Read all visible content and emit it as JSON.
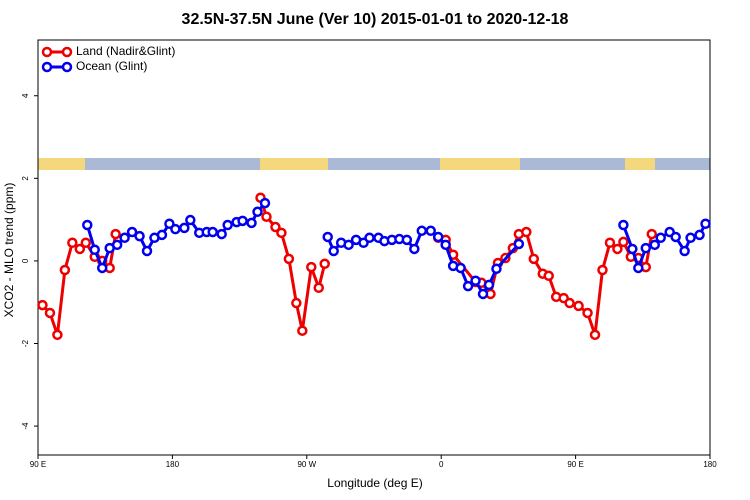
{
  "chart_data": {
    "type": "line",
    "title": "32.5N-37.5N June (Ver 10)   2015-01-01 to 2020-12-18",
    "x_label": "Longitude (deg E)",
    "y_label": "XCO2 - MLO trend (ppm)",
    "xlim": [
      90,
      540
    ],
    "xticks": [
      {
        "value": 90,
        "label": "90 E"
      },
      180,
      {
        "value": 270,
        "label": "90 W"
      },
      {
        "value": 360,
        "label": "0"
      },
      {
        "value": 450,
        "label": "90 E"
      },
      {
        "value": 540,
        "label": "180"
      }
    ],
    "ylim": [
      -4.7,
      5.35
    ],
    "yticks": [
      -4,
      -2,
      0,
      2,
      4
    ],
    "legend": "top-left",
    "series": [
      {
        "name": "Land (Nadir&Glint)",
        "color": "#ee0000",
        "x": [
          93,
          98,
          103,
          108,
          113,
          118,
          122,
          128,
          133,
          138,
          142,
          null,
          239,
          243,
          249,
          253,
          258,
          263,
          267,
          273,
          278,
          282,
          null,
          358,
          363,
          368,
          383,
          387,
          393,
          398,
          403,
          408,
          412,
          417,
          422,
          428,
          432,
          437,
          442,
          446,
          452,
          458,
          463,
          468,
          473,
          478,
          482,
          487,
          492,
          497,
          501
        ],
        "values": [
          -1.07,
          -1.26,
          -1.79,
          -0.22,
          0.44,
          0.29,
          0.44,
          0.1,
          0,
          -0.17,
          0.65,
          null,
          1.53,
          1.07,
          0.82,
          0.68,
          0.05,
          -1.02,
          -1.69,
          -0.15,
          -0.65,
          -0.07,
          null,
          0.56,
          0.51,
          0.15,
          -0.51,
          -0.53,
          -0.8,
          -0.05,
          0.07,
          0.31,
          0.65,
          0.7,
          0.05,
          -0.31,
          -0.36,
          -0.87,
          -0.9,
          -1.02,
          -1.09,
          -1.26,
          -1.79,
          -0.22,
          0.44,
          0.29,
          0.46,
          0.1,
          0.07,
          -0.15,
          0.65
        ]
      },
      {
        "name": "Ocean (Glint)",
        "color": "#0000ee",
        "x": [
          123,
          128,
          133,
          138,
          143,
          148,
          153,
          158,
          163,
          168,
          173,
          178,
          182,
          188,
          192,
          198,
          203,
          207,
          213,
          217,
          223,
          227,
          233,
          237,
          242,
          null,
          284,
          288,
          293,
          298,
          303,
          308,
          312,
          318,
          322,
          327,
          332,
          337,
          342,
          347,
          353,
          358,
          363,
          368,
          373,
          378,
          383,
          388,
          392,
          397,
          412,
          null,
          482,
          488,
          492,
          497,
          503,
          507,
          513,
          517,
          523,
          527,
          533,
          537
        ],
        "values": [
          0.87,
          0.27,
          -0.17,
          0.31,
          0.39,
          0.56,
          0.7,
          0.6,
          0.24,
          0.56,
          0.63,
          0.9,
          0.77,
          0.8,
          0.99,
          0.68,
          0.7,
          0.7,
          0.65,
          0.87,
          0.94,
          0.97,
          0.92,
          1.19,
          1.4,
          null,
          0.58,
          0.24,
          0.44,
          0.39,
          0.51,
          0.44,
          0.56,
          0.56,
          0.48,
          0.51,
          0.53,
          0.51,
          0.29,
          0.73,
          0.73,
          0.58,
          0.39,
          -0.12,
          -0.17,
          -0.61,
          -0.48,
          -0.8,
          -0.58,
          -0.19,
          0.41,
          null,
          0.87,
          0.29,
          -0.17,
          0.31,
          0.39,
          0.56,
          0.7,
          0.58,
          0.24,
          0.56,
          0.63,
          0.9
        ]
      }
    ]
  }
}
